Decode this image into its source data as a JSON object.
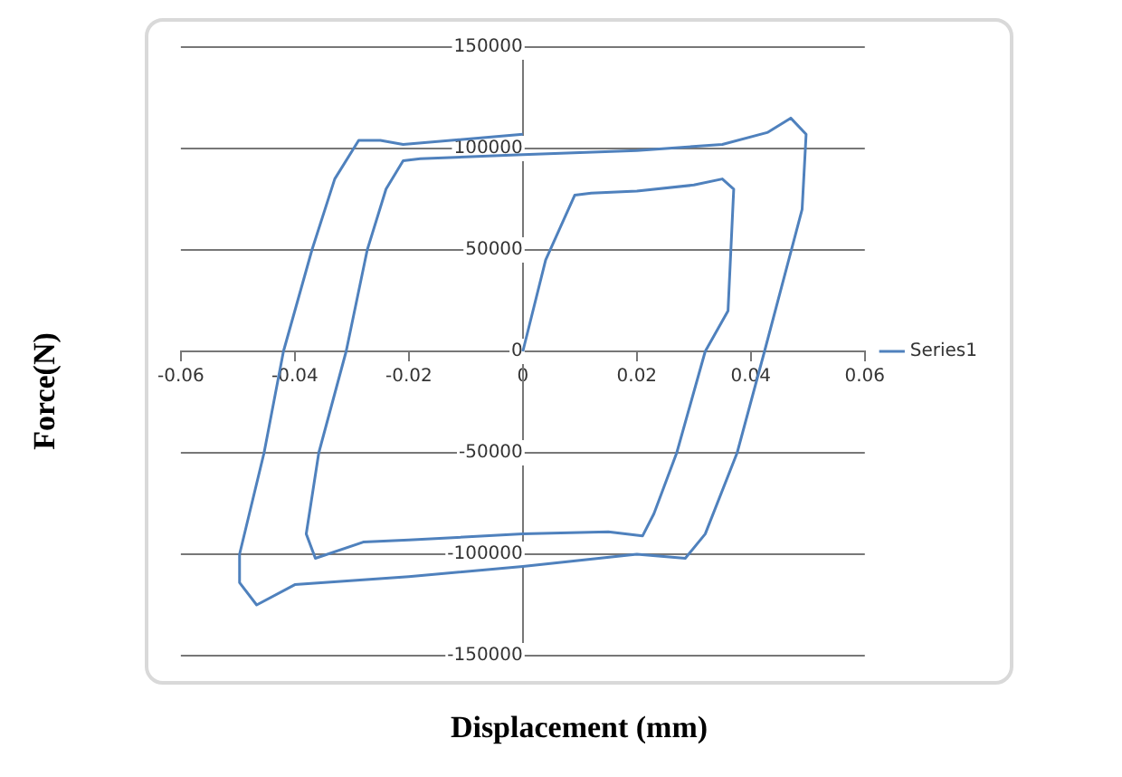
{
  "chart_data": {
    "type": "line",
    "xlabel": "Displacement (mm)",
    "ylabel": "Force(N)",
    "xlim": [
      -0.06,
      0.06
    ],
    "xticks": [
      -0.06,
      -0.04,
      -0.02,
      0,
      0.02,
      0.04,
      0.06
    ],
    "ylim": [
      -150000,
      150000
    ],
    "yticks": [
      -150000,
      -100000,
      -50000,
      0,
      50000,
      100000,
      150000
    ],
    "grid": "y",
    "legend": "right",
    "marker": "none",
    "line_style": "solid",
    "series": [
      {
        "name": "Series1",
        "color": "#4f81bd",
        "x": [
          0,
          0.004,
          0.0091,
          0.012,
          0.02,
          0.03,
          0.035,
          0.037,
          0.036,
          0.032,
          0.027,
          0.023,
          0.021,
          0.015,
          0,
          -0.02,
          -0.028,
          -0.0364,
          -0.038,
          -0.0358,
          -0.031,
          -0.0273,
          -0.024,
          -0.021,
          -0.018,
          0,
          0.02,
          0.035,
          0.043,
          0.047,
          0.0497,
          0.049,
          0.0424,
          0.0376,
          0.032,
          0.0285,
          0.02,
          0,
          -0.02,
          -0.04,
          -0.0467,
          -0.0497,
          -0.0497,
          -0.0454,
          -0.042,
          -0.037,
          -0.033,
          -0.0288,
          -0.025,
          -0.021,
          0
        ],
        "values": [
          0,
          45000,
          77000,
          78000,
          79000,
          82000,
          85000,
          80000,
          20000,
          0,
          -50000,
          -80000,
          -91000,
          -89000,
          -90000,
          -93000,
          -94000,
          -102000,
          -90000,
          -50000,
          0,
          50000,
          80000,
          94000,
          95000,
          97000,
          99000,
          102000,
          108000,
          115000,
          107000,
          70000,
          0,
          -50000,
          -90000,
          -102000,
          -100000,
          -106000,
          -111000,
          -115000,
          -125000,
          -114000,
          -100000,
          -50000,
          0,
          50000,
          85000,
          104000,
          104000,
          102000,
          107000
        ]
      }
    ]
  }
}
